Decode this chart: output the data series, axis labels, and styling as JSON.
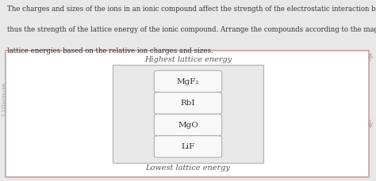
{
  "title_lines": [
    "The charges and sizes of the ions in an ionic compound affect the strength of the electrostatic interaction between the ions and",
    "thus the strength of the lattice energy of the ionic compound. Arrange the compounds according to the magnitudes of their",
    "lattice energies based on the relative ion charges and sizes."
  ],
  "highest_label": "Highest lattice energy",
  "lowest_label": "Lowest lattice energy",
  "compounds": [
    "MgF₂",
    "RbI",
    "MgO",
    "LiF"
  ],
  "outer_box_color": "#c9a0a0",
  "inner_box_bg": "#e8e8e8",
  "inner_box_border": "#b0b0b0",
  "compound_box_bg": "#f8f8f8",
  "compound_box_border": "#aaaaaa",
  "panel_bg": "#ffffff",
  "page_bg": "#e8e8e8",
  "text_color": "#333333",
  "label_color": "#555555",
  "title_fontsize": 6.2,
  "label_fontsize": 7.0,
  "compound_fontsize": 7.5
}
